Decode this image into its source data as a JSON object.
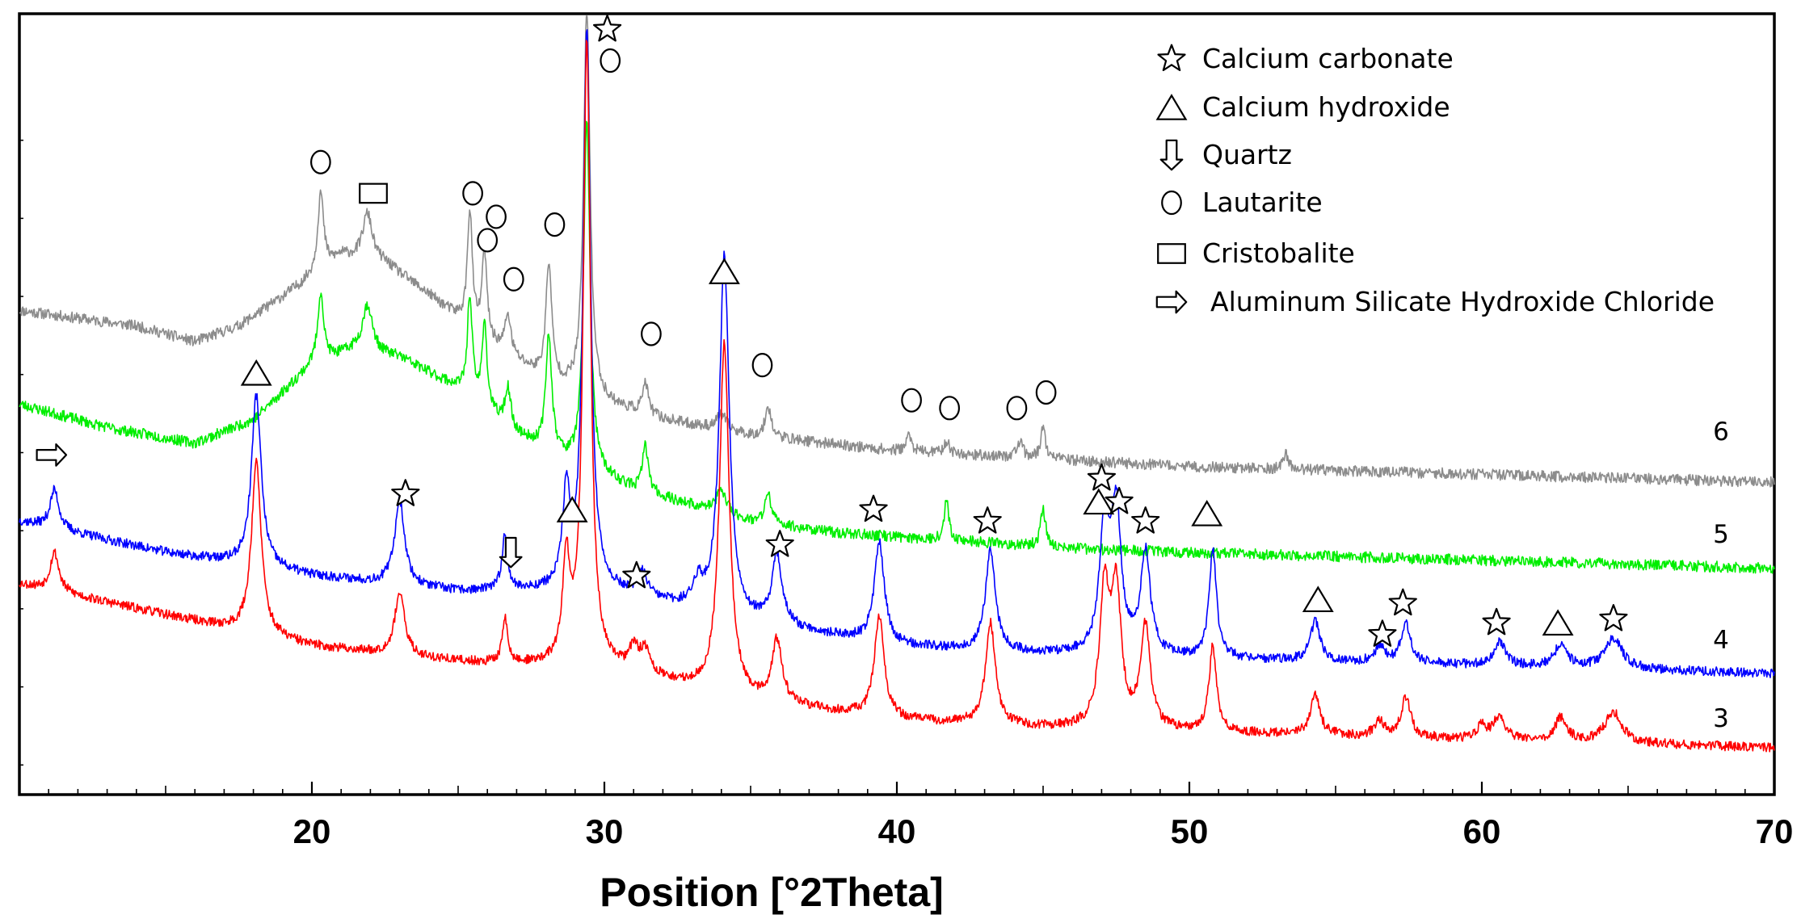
{
  "chart_data": {
    "type": "line",
    "title": "",
    "xlabel": "Position [°2Theta]",
    "ylabel": "",
    "xlim": [
      10,
      70
    ],
    "ylim": [
      0,
      100
    ],
    "x_ticks": [
      20,
      30,
      40,
      50,
      60,
      70
    ],
    "grid": false,
    "legend_position": "top-right",
    "legend": [
      {
        "marker": "star",
        "label": "Calcium carbonate"
      },
      {
        "marker": "triangle",
        "label": "Calcium hydroxide"
      },
      {
        "marker": "down-arrow",
        "label": "Quartz"
      },
      {
        "marker": "circle",
        "label": "Lautarite"
      },
      {
        "marker": "square",
        "label": "Cristobalite"
      },
      {
        "marker": "right-arrow",
        "label": "Aluminum Silicate Hydroxide Chloride"
      }
    ],
    "series": [
      {
        "name": "6",
        "color": "#8c8c8c",
        "seed": 11,
        "noise": 0.7,
        "baseline": [
          [
            10,
            62
          ],
          [
            14,
            60
          ],
          [
            16,
            58
          ],
          [
            17.5,
            60
          ],
          [
            19.5,
            65
          ],
          [
            21,
            69
          ],
          [
            22.5,
            68
          ],
          [
            24,
            64
          ],
          [
            26,
            58
          ],
          [
            28,
            53
          ],
          [
            30,
            50
          ],
          [
            32,
            48
          ],
          [
            35,
            46
          ],
          [
            40,
            44
          ],
          [
            45,
            43
          ],
          [
            50,
            42
          ],
          [
            55,
            41.5
          ],
          [
            60,
            41
          ],
          [
            65,
            40.5
          ],
          [
            70,
            40
          ]
        ],
        "peaks": [
          [
            20.3,
            10,
            0.12
          ],
          [
            21.9,
            6,
            0.2
          ],
          [
            25.4,
            15,
            0.1
          ],
          [
            25.9,
            11,
            0.1
          ],
          [
            26.7,
            5,
            0.12
          ],
          [
            28.1,
            15,
            0.12
          ],
          [
            29.4,
            50,
            0.13
          ],
          [
            31.4,
            4,
            0.12
          ],
          [
            34.0,
            2,
            0.2
          ],
          [
            35.6,
            4,
            0.12
          ],
          [
            40.4,
            2,
            0.12
          ],
          [
            41.7,
            1.5,
            0.12
          ],
          [
            44.2,
            2,
            0.12
          ],
          [
            45.0,
            4,
            0.1
          ],
          [
            53.3,
            2,
            0.1
          ]
        ]
      },
      {
        "name": "5",
        "color": "#00ee00",
        "seed": 23,
        "noise": 0.7,
        "baseline": [
          [
            10,
            50
          ],
          [
            13,
            47
          ],
          [
            16,
            45
          ],
          [
            18,
            48
          ],
          [
            20,
            55
          ],
          [
            21.5,
            57
          ],
          [
            23,
            56
          ],
          [
            25,
            52
          ],
          [
            27,
            46
          ],
          [
            29,
            42
          ],
          [
            31,
            39
          ],
          [
            33,
            37
          ],
          [
            35,
            35
          ],
          [
            38,
            33.5
          ],
          [
            42,
            32.5
          ],
          [
            46,
            31.5
          ],
          [
            50,
            31
          ],
          [
            55,
            30.5
          ],
          [
            60,
            30
          ],
          [
            65,
            29.5
          ],
          [
            70,
            29
          ]
        ],
        "peaks": [
          [
            20.3,
            9,
            0.12
          ],
          [
            21.9,
            6,
            0.2
          ],
          [
            25.4,
            13,
            0.1
          ],
          [
            25.9,
            11,
            0.1
          ],
          [
            26.7,
            5,
            0.12
          ],
          [
            28.1,
            15,
            0.12
          ],
          [
            29.4,
            45,
            0.13
          ],
          [
            31.4,
            6,
            0.12
          ],
          [
            34.0,
            3,
            0.2
          ],
          [
            35.6,
            4,
            0.12
          ],
          [
            41.7,
            5,
            0.1
          ],
          [
            45.0,
            5,
            0.1
          ]
        ]
      },
      {
        "name": "4",
        "color": "#0000ff",
        "seed": 37,
        "noise": 0.6,
        "baseline": [
          [
            10,
            35
          ],
          [
            15,
            31
          ],
          [
            20,
            28
          ],
          [
            25,
            26
          ],
          [
            30,
            26
          ],
          [
            35,
            22
          ],
          [
            40,
            19
          ],
          [
            45,
            18
          ],
          [
            50,
            17.5
          ],
          [
            55,
            17
          ],
          [
            60,
            16.5
          ],
          [
            65,
            16
          ],
          [
            70,
            15.5
          ]
        ],
        "peaks": [
          [
            11.2,
            5,
            0.18
          ],
          [
            18.1,
            22,
            0.2
          ],
          [
            23.0,
            11,
            0.2
          ],
          [
            26.6,
            7,
            0.12
          ],
          [
            28.7,
            12,
            0.15
          ],
          [
            29.4,
            72,
            0.15
          ],
          [
            31.3,
            3,
            0.2
          ],
          [
            33.2,
            3,
            0.2
          ],
          [
            34.1,
            46,
            0.2
          ],
          [
            35.9,
            9,
            0.2
          ],
          [
            39.4,
            13,
            0.2
          ],
          [
            43.2,
            13,
            0.2
          ],
          [
            47.1,
            16,
            0.2
          ],
          [
            47.5,
            18,
            0.2
          ],
          [
            48.5,
            13,
            0.2
          ],
          [
            50.8,
            14,
            0.15
          ],
          [
            54.3,
            5,
            0.2
          ],
          [
            56.5,
            2,
            0.2
          ],
          [
            57.4,
            5,
            0.2
          ],
          [
            60.6,
            3,
            0.25
          ],
          [
            62.7,
            3,
            0.25
          ],
          [
            64.5,
            4,
            0.35
          ]
        ]
      },
      {
        "name": "3",
        "color": "#ff0000",
        "seed": 53,
        "noise": 0.6,
        "baseline": [
          [
            10,
            27
          ],
          [
            15,
            23
          ],
          [
            20,
            19
          ],
          [
            25,
            17
          ],
          [
            30,
            16
          ],
          [
            35,
            12
          ],
          [
            40,
            9.5
          ],
          [
            45,
            8.5
          ],
          [
            50,
            8
          ],
          [
            55,
            7.5
          ],
          [
            60,
            7
          ],
          [
            65,
            6.5
          ],
          [
            70,
            6
          ]
        ],
        "peaks": [
          [
            11.2,
            5,
            0.18
          ],
          [
            18.1,
            22,
            0.2
          ],
          [
            23.0,
            8,
            0.2
          ],
          [
            26.6,
            6,
            0.1
          ],
          [
            28.7,
            13,
            0.15
          ],
          [
            29.4,
            80,
            0.15
          ],
          [
            31.0,
            3,
            0.2
          ],
          [
            31.4,
            3,
            0.2
          ],
          [
            34.1,
            45,
            0.2
          ],
          [
            35.9,
            8,
            0.2
          ],
          [
            39.4,
            13,
            0.2
          ],
          [
            43.2,
            13,
            0.2
          ],
          [
            47.1,
            17,
            0.2
          ],
          [
            47.5,
            17,
            0.2
          ],
          [
            48.5,
            13,
            0.2
          ],
          [
            50.8,
            11,
            0.15
          ],
          [
            54.3,
            5,
            0.2
          ],
          [
            56.5,
            2,
            0.2
          ],
          [
            57.4,
            5,
            0.2
          ],
          [
            60.0,
            2,
            0.15
          ],
          [
            60.6,
            3,
            0.25
          ],
          [
            62.7,
            3,
            0.25
          ],
          [
            64.5,
            4,
            0.35
          ]
        ]
      }
    ],
    "annotations": [
      {
        "marker": "circle",
        "x": 20.3,
        "y": 81
      },
      {
        "marker": "square",
        "x": 22.1,
        "y": 77
      },
      {
        "marker": "circle",
        "x": 25.5,
        "y": 77
      },
      {
        "marker": "circle",
        "x": 26.3,
        "y": 74
      },
      {
        "marker": "circle",
        "x": 26.0,
        "y": 71
      },
      {
        "marker": "circle",
        "x": 26.9,
        "y": 66
      },
      {
        "marker": "circle",
        "x": 28.3,
        "y": 73
      },
      {
        "marker": "star",
        "x": 30.1,
        "y": 98
      },
      {
        "marker": "circle",
        "x": 30.2,
        "y": 94
      },
      {
        "marker": "circle",
        "x": 31.6,
        "y": 59
      },
      {
        "marker": "circle",
        "x": 35.4,
        "y": 55
      },
      {
        "marker": "circle",
        "x": 40.5,
        "y": 50.5
      },
      {
        "marker": "circle",
        "x": 41.8,
        "y": 49.5
      },
      {
        "marker": "circle",
        "x": 44.1,
        "y": 49.5
      },
      {
        "marker": "circle",
        "x": 45.1,
        "y": 51.5
      },
      {
        "marker": "triangle",
        "x": 34.1,
        "y": 67
      },
      {
        "marker": "triangle",
        "x": 18.1,
        "y": 54
      },
      {
        "marker": "right-arrow",
        "x": 11.1,
        "y": 43.5
      },
      {
        "marker": "star",
        "x": 23.2,
        "y": 38.5
      },
      {
        "marker": "down-arrow",
        "x": 26.8,
        "y": 31
      },
      {
        "marker": "triangle",
        "x": 28.9,
        "y": 36.5
      },
      {
        "marker": "star",
        "x": 31.1,
        "y": 28
      },
      {
        "marker": "star",
        "x": 36.0,
        "y": 32
      },
      {
        "marker": "star",
        "x": 39.2,
        "y": 36.5
      },
      {
        "marker": "star",
        "x": 43.1,
        "y": 35
      },
      {
        "marker": "star",
        "x": 47.0,
        "y": 40.5
      },
      {
        "marker": "triangle",
        "x": 46.9,
        "y": 37.5
      },
      {
        "marker": "star",
        "x": 47.6,
        "y": 37.5
      },
      {
        "marker": "star",
        "x": 48.5,
        "y": 35
      },
      {
        "marker": "triangle",
        "x": 50.6,
        "y": 36
      },
      {
        "marker": "triangle",
        "x": 54.4,
        "y": 25
      },
      {
        "marker": "star",
        "x": 56.6,
        "y": 20.5
      },
      {
        "marker": "star",
        "x": 57.3,
        "y": 24.5
      },
      {
        "marker": "star",
        "x": 60.5,
        "y": 22
      },
      {
        "marker": "triangle",
        "x": 62.6,
        "y": 22
      },
      {
        "marker": "star",
        "x": 64.5,
        "y": 22.5
      }
    ]
  }
}
